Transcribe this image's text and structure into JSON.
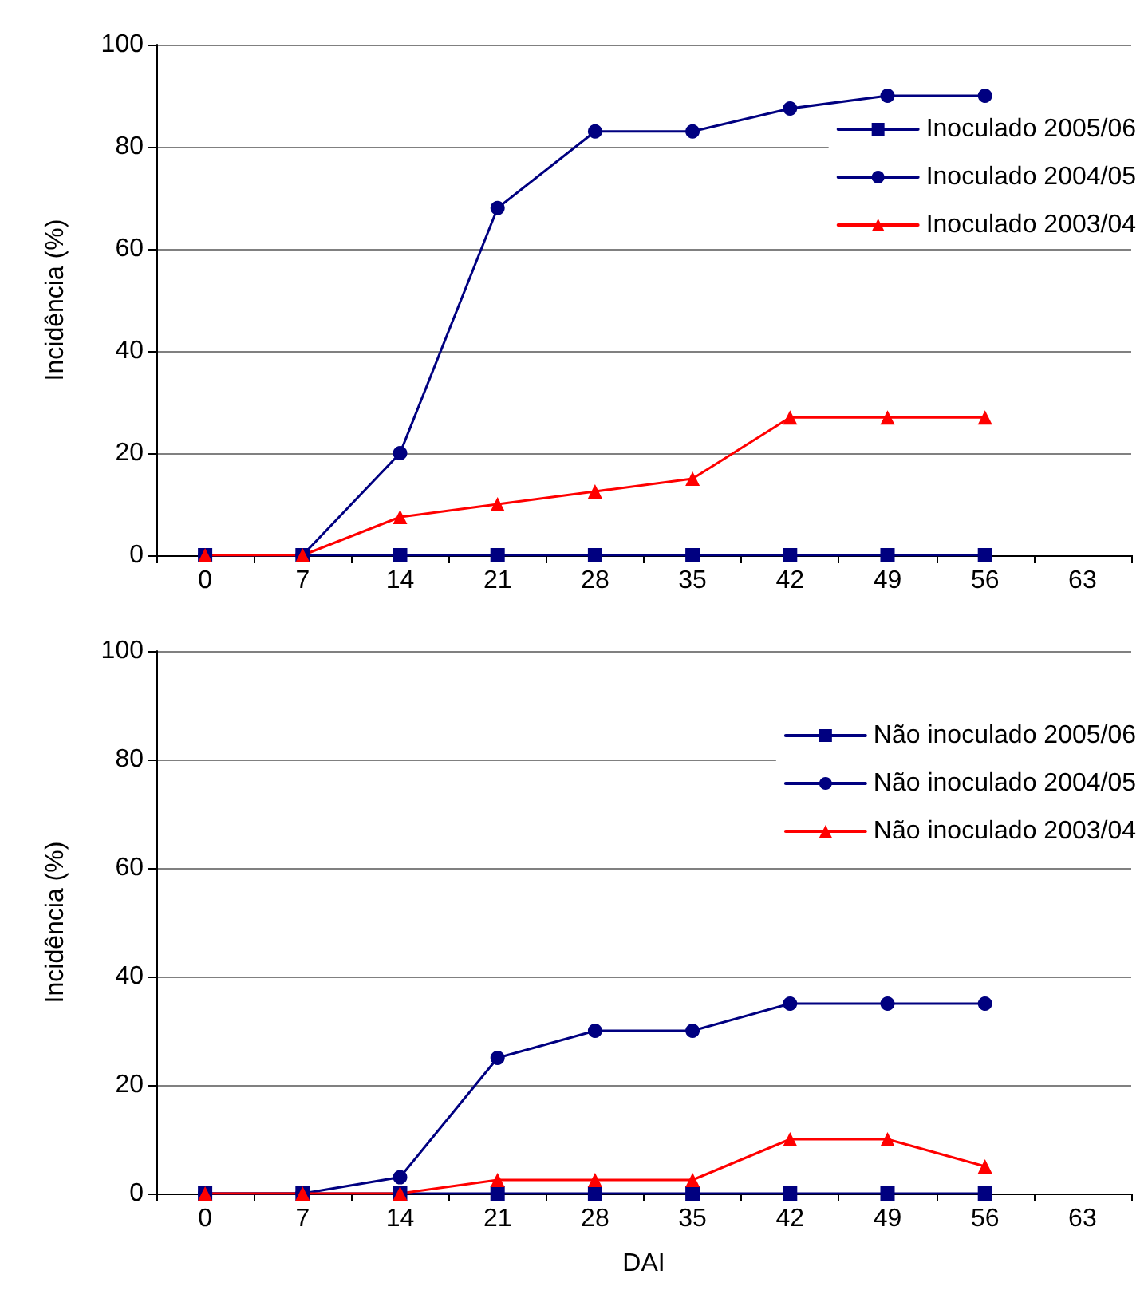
{
  "chart_data": [
    {
      "type": "line",
      "ylabel": "Incidência (%)",
      "categories": [
        "0",
        "7",
        "14",
        "21",
        "28",
        "35",
        "42",
        "49",
        "56",
        "63"
      ],
      "ylim": [
        0,
        100
      ],
      "yticks": [
        0,
        20,
        40,
        60,
        80,
        100
      ],
      "grid": "y",
      "legend": "top right",
      "series": [
        {
          "name": "Inoculado 2005/06",
          "color": "#000080",
          "marker": "square",
          "values": [
            0,
            0,
            0,
            0,
            0,
            0,
            0,
            0,
            0,
            null
          ]
        },
        {
          "name": "Inoculado 2004/05",
          "color": "#000080",
          "marker": "circle",
          "values": [
            0,
            0,
            20,
            68,
            83,
            83,
            87.5,
            90,
            90,
            null
          ]
        },
        {
          "name": "Inoculado 2003/04",
          "color": "#ff0000",
          "marker": "triangle",
          "values": [
            0,
            0,
            7.5,
            10,
            12.5,
            15,
            27,
            27,
            27,
            null
          ]
        }
      ]
    },
    {
      "type": "line",
      "xlabel": "DAI",
      "ylabel": "Incidência (%)",
      "categories": [
        "0",
        "7",
        "14",
        "21",
        "28",
        "35",
        "42",
        "49",
        "56",
        "63"
      ],
      "ylim": [
        0,
        100
      ],
      "yticks": [
        0,
        20,
        40,
        60,
        80,
        100
      ],
      "grid": "y",
      "legend": "top right",
      "series": [
        {
          "name": "Não inoculado 2005/06",
          "color": "#000080",
          "marker": "square",
          "values": [
            0,
            0,
            0,
            0,
            0,
            0,
            0,
            0,
            0,
            null
          ]
        },
        {
          "name": "Não inoculado 2004/05",
          "color": "#000080",
          "marker": "circle",
          "values": [
            0,
            0,
            3,
            25,
            30,
            30,
            35,
            35,
            35,
            null
          ]
        },
        {
          "name": "Não inoculado 2003/04",
          "color": "#ff0000",
          "marker": "triangle",
          "values": [
            0,
            0,
            0,
            2.5,
            2.5,
            2.5,
            10,
            10,
            5,
            null
          ]
        }
      ]
    }
  ]
}
